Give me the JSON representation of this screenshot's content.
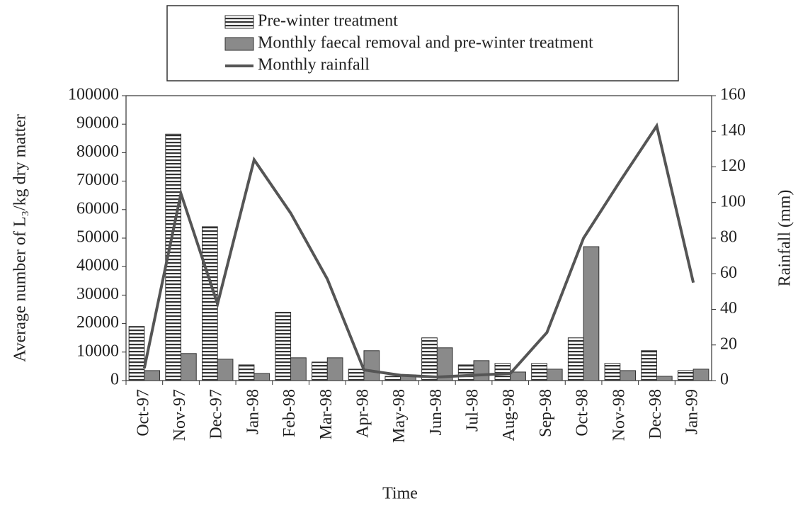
{
  "chart_data": {
    "type": "bar_line",
    "x_label": "Time",
    "y_label": "Average number of L₃/kg dry matter",
    "y2_label": "Rainfall (mm)",
    "categories": [
      "Oct-97",
      "Nov-97",
      "Dec-97",
      "Jan-98",
      "Feb-98",
      "Mar-98",
      "Apr-98",
      "May-98",
      "Jun-98",
      "Jul-98",
      "Aug-98",
      "Sep-98",
      "Oct-98",
      "Nov-98",
      "Dec-98",
      "Jan-99"
    ],
    "series": [
      {
        "name": "Pre-winter treatment",
        "type": "bar",
        "color": "#333333",
        "values": [
          19000,
          86500,
          54000,
          5500,
          24000,
          6500,
          4000,
          1500,
          15000,
          5500,
          6000,
          6000,
          15000,
          6000,
          10500,
          3500
        ]
      },
      {
        "name": "Monthly faecal removal and pre-winter treatment",
        "type": "bar",
        "color": "#8a8a8a",
        "values": [
          3500,
          9500,
          7500,
          2500,
          8000,
          8000,
          10500,
          2000,
          11500,
          7000,
          3000,
          4000,
          47000,
          3500,
          1500,
          4000
        ]
      },
      {
        "name": "Monthly rainfall",
        "type": "line",
        "axis": "y2",
        "color": "#555555",
        "values": [
          7,
          105,
          43,
          124,
          94,
          57,
          6,
          3,
          2,
          3,
          4,
          27,
          80,
          112,
          143,
          55
        ]
      }
    ],
    "ylim": [
      0,
      100000
    ],
    "yticks": [
      0,
      10000,
      20000,
      30000,
      40000,
      50000,
      60000,
      70000,
      80000,
      90000,
      100000
    ],
    "y2lim": [
      0,
      160
    ],
    "y2ticks": [
      0,
      20,
      40,
      60,
      80,
      100,
      120,
      140,
      160
    ]
  }
}
